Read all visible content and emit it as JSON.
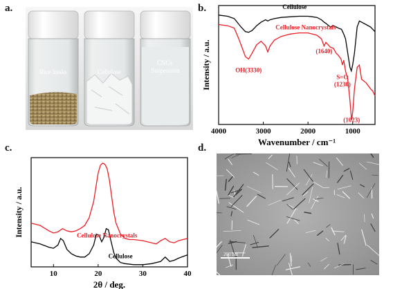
{
  "panels": {
    "a": {
      "letter": "a.",
      "vials": [
        "Rice husks",
        "Cellulose",
        "CNCs\nSuspension"
      ]
    },
    "b": {
      "letter": "b."
    },
    "c": {
      "letter": "c."
    },
    "d": {
      "letter": "d.",
      "scale_bar": "200 nm"
    }
  },
  "colors": {
    "cellulose": "#000000",
    "cnc": "#ee1c24"
  },
  "chart_data": [
    {
      "id": "b",
      "type": "line",
      "xlabel": "Wavenumber / cm⁻¹",
      "ylabel": "Intensity / a.u.",
      "xlim": [
        4000,
        500
      ],
      "xticks": [
        4000,
        3000,
        2000,
        1000
      ],
      "ylim": [
        0,
        1
      ],
      "series": [
        {
          "name": "Cellulose",
          "color": "#000000",
          "x": [
            4000,
            3800,
            3650,
            3500,
            3400,
            3330,
            3250,
            3150,
            3050,
            2950,
            2900,
            2850,
            2750,
            2600,
            2400,
            2200,
            2000,
            1900,
            1800,
            1700,
            1640,
            1600,
            1500,
            1430,
            1370,
            1320,
            1250,
            1200,
            1160,
            1110,
            1060,
            1030,
            1000,
            960,
            900,
            850,
            800,
            700,
            600,
            550,
            500
          ],
          "y": [
            0.92,
            0.91,
            0.89,
            0.82,
            0.78,
            0.775,
            0.79,
            0.83,
            0.86,
            0.88,
            0.87,
            0.88,
            0.89,
            0.9,
            0.905,
            0.91,
            0.91,
            0.905,
            0.9,
            0.88,
            0.86,
            0.85,
            0.82,
            0.83,
            0.82,
            0.81,
            0.8,
            0.76,
            0.72,
            0.6,
            0.48,
            0.45,
            0.5,
            0.6,
            0.82,
            0.87,
            0.86,
            0.84,
            0.82,
            0.8,
            0.78
          ]
        },
        {
          "name": "Cellulose Nanocrystals",
          "color": "#ee1c24",
          "x": [
            4000,
            3800,
            3650,
            3550,
            3450,
            3400,
            3330,
            3250,
            3150,
            3050,
            2950,
            2900,
            2850,
            2750,
            2600,
            2400,
            2200,
            2000,
            1900,
            1800,
            1700,
            1640,
            1600,
            1500,
            1430,
            1370,
            1320,
            1260,
            1230,
            1200,
            1160,
            1110,
            1060,
            1030,
            1023,
            1000,
            960,
            900,
            850,
            800,
            700,
            600,
            550,
            500
          ],
          "y": [
            0.84,
            0.83,
            0.81,
            0.72,
            0.62,
            0.57,
            0.55,
            0.6,
            0.67,
            0.7,
            0.66,
            0.61,
            0.66,
            0.71,
            0.74,
            0.76,
            0.77,
            0.77,
            0.76,
            0.75,
            0.72,
            0.66,
            0.69,
            0.65,
            0.64,
            0.6,
            0.58,
            0.55,
            0.5,
            0.54,
            0.45,
            0.38,
            0.2,
            0.06,
            0.04,
            0.1,
            0.3,
            0.48,
            0.5,
            0.38,
            0.35,
            0.3,
            0.28,
            0.24
          ]
        }
      ],
      "annotations": [
        {
          "text": "OH(3330)",
          "x": 3330,
          "y": 0.44,
          "color": "#ee1c24"
        },
        {
          "text": "(1640)",
          "x": 1640,
          "y": 0.6,
          "color": "#ee1c24"
        },
        {
          "text": "S=O",
          "x": 1230,
          "y": 0.38,
          "color": "#ee1c24"
        },
        {
          "text": "(1230)",
          "x": 1230,
          "y": 0.32,
          "color": "#ee1c24"
        },
        {
          "text": "(1023)",
          "x": 1023,
          "y": 0.02,
          "color": "#ee1c24"
        },
        {
          "text": "Cellulose",
          "x": 2300,
          "y": 0.97,
          "color": "#000000"
        },
        {
          "text": "Cellulose Nanocrystals",
          "x": 2050,
          "y": 0.8,
          "color": "#ee1c24"
        }
      ]
    },
    {
      "id": "c",
      "type": "line",
      "xlabel": "2θ / deg.",
      "ylabel": "Intensity / a.u.",
      "xlim": [
        5,
        40
      ],
      "xticks": [
        10,
        20,
        30,
        40
      ],
      "ylim": [
        0,
        1
      ],
      "series": [
        {
          "name": "Cellulose Nanocrystals",
          "color": "#ee1c24",
          "x": [
            5,
            7,
            9,
            10,
            11,
            12,
            13,
            14,
            15,
            16,
            17,
            18,
            19,
            19.5,
            20,
            20.5,
            21,
            21.5,
            22,
            22.5,
            23,
            23.5,
            24,
            25,
            26,
            27,
            28,
            30,
            32,
            33,
            34,
            35,
            36,
            37,
            38,
            40
          ],
          "y": [
            0.4,
            0.38,
            0.33,
            0.31,
            0.32,
            0.35,
            0.33,
            0.32,
            0.33,
            0.35,
            0.38,
            0.45,
            0.6,
            0.73,
            0.86,
            0.93,
            0.95,
            0.94,
            0.9,
            0.8,
            0.65,
            0.5,
            0.4,
            0.3,
            0.26,
            0.25,
            0.25,
            0.24,
            0.22,
            0.21,
            0.24,
            0.26,
            0.23,
            0.22,
            0.24,
            0.26
          ]
        },
        {
          "name": "Cellulose",
          "color": "#000000",
          "x": [
            5,
            7,
            9,
            10,
            11,
            11.6,
            12.2,
            13,
            14,
            15,
            16,
            17,
            18,
            19,
            19.6,
            20.2,
            20.8,
            21.3,
            21.8,
            22.3,
            22.8,
            23.5,
            24,
            25,
            26,
            28,
            30,
            32,
            34,
            35,
            36,
            37,
            38,
            40
          ],
          "y": [
            0.23,
            0.21,
            0.18,
            0.17,
            0.2,
            0.26,
            0.24,
            0.16,
            0.12,
            0.1,
            0.09,
            0.09,
            0.12,
            0.2,
            0.3,
            0.29,
            0.23,
            0.27,
            0.35,
            0.34,
            0.25,
            0.13,
            0.08,
            0.04,
            0.03,
            0.02,
            0.02,
            0.03,
            0.05,
            0.09,
            0.05,
            0.06,
            0.08,
            0.11
          ]
        }
      ],
      "annotations": [
        {
          "text": "Cellulose Nanocrystals",
          "x": 22,
          "y": 0.27,
          "color": "#ee1c24"
        },
        {
          "text": "Cellulose",
          "x": 25,
          "y": 0.08,
          "color": "#000000"
        }
      ]
    }
  ]
}
